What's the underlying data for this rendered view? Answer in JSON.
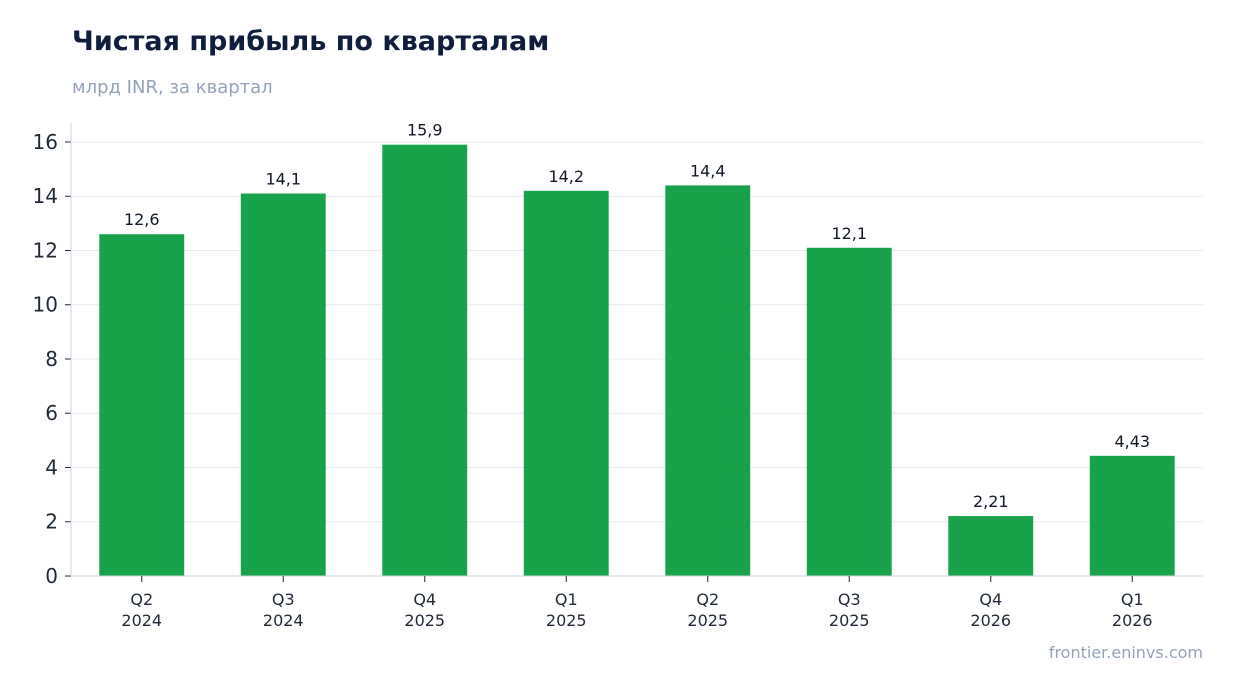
{
  "chart_data": {
    "type": "bar",
    "title": "Чистая прибыль по кварталам",
    "subtitle": "млрд INR, за квартал",
    "source": "frontier.eninvs.com",
    "categories": [
      [
        "Q2",
        "2024"
      ],
      [
        "Q3",
        "2024"
      ],
      [
        "Q4",
        "2025"
      ],
      [
        "Q1",
        "2025"
      ],
      [
        "Q2",
        "2025"
      ],
      [
        "Q3",
        "2025"
      ],
      [
        "Q4",
        "2026"
      ],
      [
        "Q1",
        "2026"
      ]
    ],
    "values": [
      12.6,
      14.1,
      15.9,
      14.2,
      14.4,
      12.1,
      2.21,
      4.43
    ],
    "value_labels": [
      "12,6",
      "14,1",
      "15,9",
      "14,2",
      "14,4",
      "12,1",
      "2,21",
      "4,43"
    ],
    "ylim": [
      0,
      16.7
    ],
    "yticks": [
      0,
      2,
      4,
      6,
      8,
      10,
      12,
      14,
      16
    ],
    "grid": true,
    "legend": "none",
    "colors": {
      "bar": "#18a34a",
      "grid": "#e5e9f0",
      "axis": "#cbd5e1",
      "title": "#0f1e3d",
      "muted": "#94a3b8"
    }
  }
}
